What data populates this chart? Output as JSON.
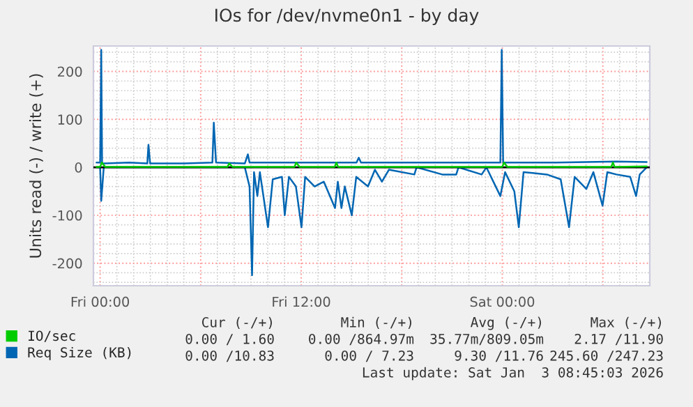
{
  "chart_data": {
    "type": "line",
    "title": "IOs for /dev/nvme0n1 - by day",
    "ylabel": "Units read (-) / write (+)",
    "xlim": [
      "2026-01-01T23:36",
      "2026-01-03T08:48"
    ],
    "xticks": [
      {
        "value": "2026-01-02T00:00",
        "label": "Fri 00:00"
      },
      {
        "value": "2026-01-02T06:00",
        "label": null
      },
      {
        "value": "2026-01-02T12:00",
        "label": "Fri 12:00"
      },
      {
        "value": "2026-01-02T18:00",
        "label": null
      },
      {
        "value": "2026-01-03T00:00",
        "label": "Sat 00:00"
      },
      {
        "value": "2026-01-03T06:00",
        "label": null
      }
    ],
    "ylim": [
      -247,
      253
    ],
    "yticks": [
      -200,
      -100,
      0,
      100,
      200
    ],
    "grid": true,
    "legend": "bottom left",
    "series": [
      {
        "name": "IO/sec",
        "color": "#00cc00",
        "x": [
          "2026-01-01T23:47",
          "2026-01-02T00:00",
          "2026-01-02T00:06",
          "2026-01-02T00:18",
          "2026-01-02T07:36",
          "2026-01-02T07:42",
          "2026-01-02T07:54",
          "2026-01-02T11:36",
          "2026-01-02T11:42",
          "2026-01-02T11:54",
          "2026-01-02T14:00",
          "2026-01-02T14:06",
          "2026-01-02T14:12",
          "2026-01-03T00:00",
          "2026-01-03T00:06",
          "2026-01-03T00:18",
          "2026-01-03T06:30",
          "2026-01-03T06:36",
          "2026-01-03T06:42",
          "2026-01-03T08:37"
        ],
        "values": [
          1,
          1,
          10,
          1,
          1,
          8,
          1,
          1,
          10,
          1,
          1,
          10,
          1,
          1,
          10,
          1,
          1,
          10,
          1,
          2
        ]
      },
      {
        "name": "Req Size (KB)",
        "color": "#0066b3",
        "x": [
          "2026-01-01T23:47",
          "2026-01-02T00:00",
          "2026-01-02T00:04",
          "2026-01-02T00:07",
          "2026-01-02T00:16",
          "2026-01-02T01:43",
          "2026-01-02T02:49",
          "2026-01-02T02:53",
          "2026-01-02T02:59",
          "2026-01-02T05:02",
          "2026-01-02T06:42",
          "2026-01-02T06:47",
          "2026-01-02T06:55",
          "2026-01-02T08:38",
          "2026-01-02T08:49",
          "2026-01-02T08:55",
          "2026-01-02T11:41",
          "2026-01-02T15:18",
          "2026-01-02T15:26",
          "2026-01-02T15:34",
          "2026-01-02T23:53",
          "2026-01-02T23:58",
          "2026-01-03T00:03",
          "2026-01-03T03:13",
          "2026-01-03T06:49",
          "2026-01-03T08:37"
        ],
        "values": [
          10,
          10,
          245,
          8,
          8,
          10,
          8,
          47,
          8,
          8,
          10,
          93,
          10,
          8,
          27,
          10,
          10,
          10,
          20,
          10,
          10,
          245,
          10,
          10,
          12,
          11
        ]
      },
      {
        "color": "#0066b3",
        "x": [
          "2026-01-01T23:47",
          "2026-01-02T00:00",
          "2026-01-02T00:04",
          "2026-01-02T00:13",
          "2026-01-02T08:38",
          "2026-01-02T08:55",
          "2026-01-02T09:04",
          "2026-01-02T09:11",
          "2026-01-02T09:23",
          "2026-01-02T09:32",
          "2026-01-02T10:01",
          "2026-01-02T10:18",
          "2026-01-02T10:51",
          "2026-01-02T11:01",
          "2026-01-02T11:16",
          "2026-01-02T11:41",
          "2026-01-02T12:01",
          "2026-01-02T12:14",
          "2026-01-02T12:48",
          "2026-01-02T13:21",
          "2026-01-02T14:01",
          "2026-01-02T14:11",
          "2026-01-02T14:24",
          "2026-01-02T14:36",
          "2026-01-02T15:01",
          "2026-01-02T15:17",
          "2026-01-02T15:59",
          "2026-01-02T16:24",
          "2026-01-02T16:49",
          "2026-01-02T17:14",
          "2026-01-02T18:45",
          "2026-01-02T18:53",
          "2026-01-02T20:25",
          "2026-01-02T21:15",
          "2026-01-02T21:23",
          "2026-01-02T22:46",
          "2026-01-02T23:03",
          "2026-01-02T23:53",
          "2026-01-03T00:10",
          "2026-01-03T00:43",
          "2026-01-03T00:59",
          "2026-01-03T01:16",
          "2026-01-03T02:40",
          "2026-01-03T03:29",
          "2026-01-03T03:59",
          "2026-01-03T04:19",
          "2026-01-03T05:01",
          "2026-01-03T05:26",
          "2026-01-03T05:59",
          "2026-01-03T06:16",
          "2026-01-03T06:49",
          "2026-01-03T07:38",
          "2026-01-03T07:59",
          "2026-01-03T08:12",
          "2026-01-03T08:37"
        ],
        "values": [
          0,
          0,
          -70,
          0,
          0,
          -40,
          -225,
          -10,
          -60,
          -10,
          -125,
          -25,
          -20,
          -100,
          -20,
          -40,
          -125,
          -20,
          -40,
          -30,
          -85,
          -30,
          -85,
          -40,
          -100,
          -20,
          -40,
          -5,
          -30,
          -5,
          -15,
          0,
          -15,
          -15,
          0,
          -15,
          0,
          -60,
          -10,
          -50,
          -125,
          -10,
          -15,
          -25,
          -125,
          -20,
          -45,
          -10,
          -80,
          -10,
          -15,
          -20,
          -60,
          -15,
          0
        ]
      }
    ],
    "ref_lines": [
      {
        "axis": "y",
        "value": 0,
        "color": "#000000"
      }
    ],
    "annotations": [
      "Cur (-/+)",
      "Min (-/+)",
      "Avg (-/+)",
      "Max (-/+)",
      "0.00 / 1.60",
      "0.00 /864.97m",
      "35.77m/809.05m",
      "2.17 /11.90",
      "0.00 /10.83",
      "0.00 / 7.23",
      "9.30 /11.76",
      "245.60 /247.23",
      "Last update: Sat Jan  3 08:45:03 2026"
    ]
  }
}
